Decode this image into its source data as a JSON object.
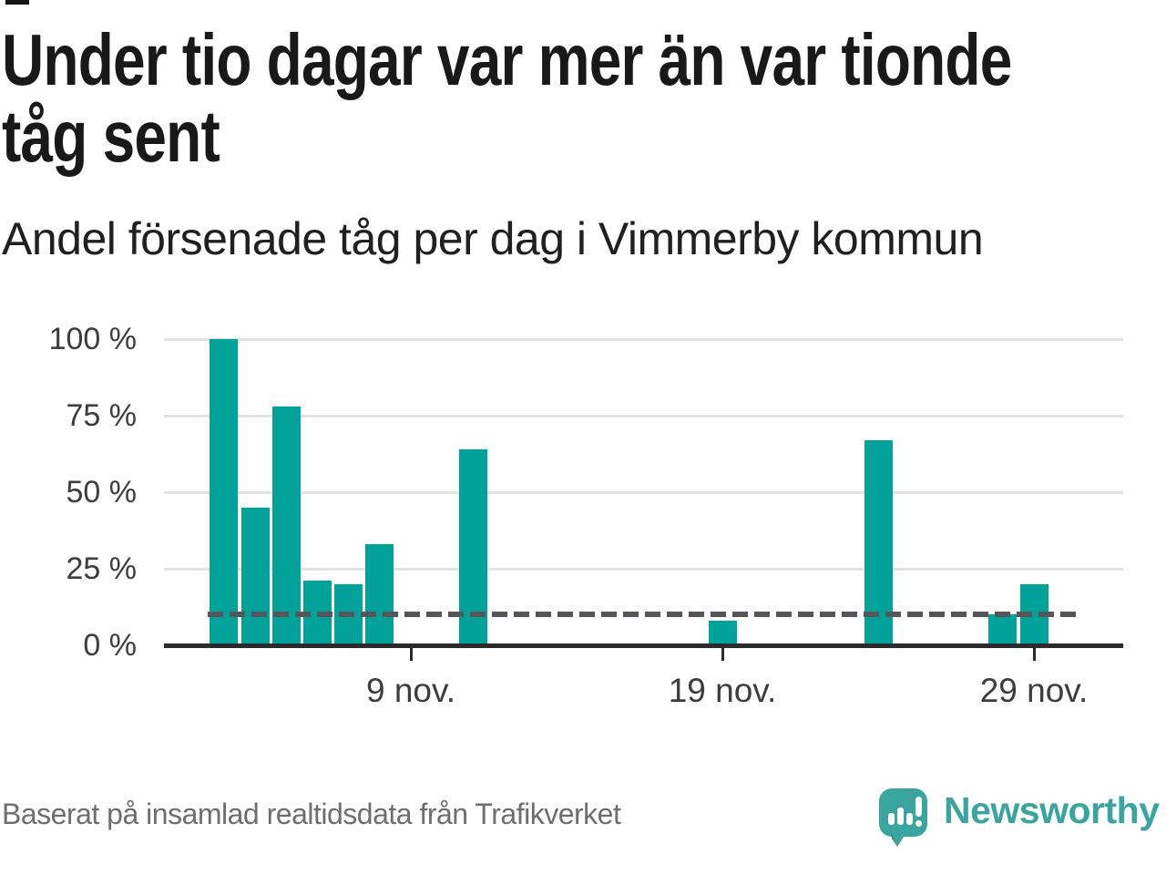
{
  "header": {
    "title_lines": [
      "Under tio dagar var mer än var tionde",
      "tåg sent"
    ],
    "subtitle": "Andel försenade tåg per dag i Vimmerby kommun"
  },
  "footer": {
    "source": "Baserat på insamlad realtidsdata från Trafikverket",
    "brand": "Newsworthy"
  },
  "colors": {
    "bar": "#01a29a",
    "reference_line": "#57555a",
    "axis": "#2b2b2b",
    "gridline": "#e2e2e2",
    "brand_teal": "#39a59e"
  },
  "chart_data": {
    "type": "bar",
    "title": "Under tio dagar var mer än var tionde tåg sent",
    "subtitle": "Andel försenade tåg per dag i Vimmerby kommun",
    "unit": "%",
    "x_unit": "day of November",
    "points": [
      {
        "day": 3,
        "value": 100
      },
      {
        "day": 4,
        "value": 45
      },
      {
        "day": 5,
        "value": 78
      },
      {
        "day": 6,
        "value": 21
      },
      {
        "day": 7,
        "value": 20
      },
      {
        "day": 8,
        "value": 33
      },
      {
        "day": 11,
        "value": 64
      },
      {
        "day": 19,
        "value": 8
      },
      {
        "day": 24,
        "value": 67
      },
      {
        "day": 28,
        "value": 10
      },
      {
        "day": 29,
        "value": 20
      }
    ],
    "yticks": [
      0,
      25,
      50,
      75,
      100
    ],
    "ytick_labels": [
      "0 %",
      "25 %",
      "50 %",
      "75 %",
      "100 %"
    ],
    "x_ticks": [
      {
        "day": 9,
        "label": "9 nov."
      },
      {
        "day": 19,
        "label": "19 nov."
      },
      {
        "day": 29,
        "label": "29 nov."
      }
    ],
    "ylim": [
      0,
      100
    ],
    "reference_line": 10,
    "grid": "horizontal",
    "legend": "none"
  }
}
